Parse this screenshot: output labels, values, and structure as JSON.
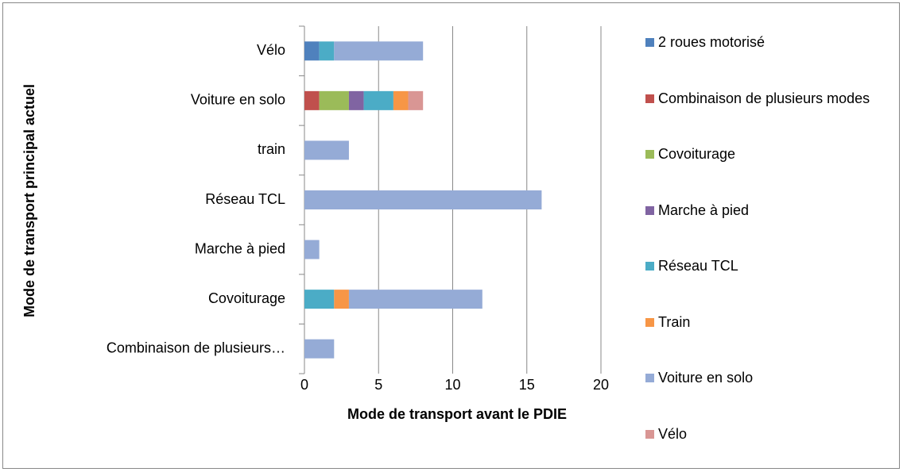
{
  "chart_data": {
    "type": "stacked-barh",
    "xlabel": "Mode de transport avant le PDIE",
    "ylabel": "Mode de transport principal actuel",
    "categories": [
      "Vélo",
      "Voiture en solo",
      "train",
      "Réseau TCL",
      "Marche à pied",
      "Covoiturage",
      "Combinaison de plusieurs…"
    ],
    "series": [
      {
        "name": "2 roues motorisé",
        "color": "#4f81bd",
        "values": [
          1,
          0,
          0,
          0,
          0,
          0,
          0
        ]
      },
      {
        "name": "Combinaison de plusieurs modes",
        "color": "#c0504d",
        "values": [
          0,
          1,
          0,
          0,
          0,
          0,
          0
        ]
      },
      {
        "name": "Covoiturage",
        "color": "#9bbb59",
        "values": [
          0,
          2,
          0,
          0,
          0,
          0,
          0
        ]
      },
      {
        "name": "Marche à pied",
        "color": "#8064a2",
        "values": [
          0,
          1,
          0,
          0,
          0,
          0,
          0
        ]
      },
      {
        "name": "Réseau TCL",
        "color": "#4bacc6",
        "values": [
          1,
          2,
          0,
          0,
          0,
          2,
          0
        ]
      },
      {
        "name": "Train",
        "color": "#f79646",
        "values": [
          0,
          1,
          0,
          0,
          0,
          1,
          0
        ]
      },
      {
        "name": "Voiture en solo",
        "color": "#95abd6",
        "values": [
          6,
          0,
          3,
          16,
          1,
          9,
          2
        ]
      },
      {
        "name": "Vélo",
        "color": "#d99694",
        "values": [
          0,
          1,
          0,
          0,
          0,
          0,
          0
        ]
      }
    ],
    "xlim": [
      0,
      20
    ],
    "xticks": [
      0,
      5,
      10,
      15,
      20
    ],
    "grid": true,
    "legend": "right"
  }
}
